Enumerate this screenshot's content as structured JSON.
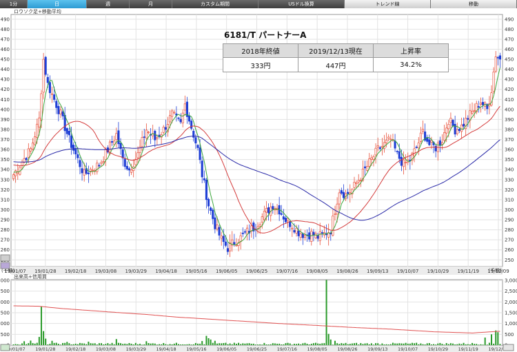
{
  "tabs": [
    {
      "label": "1分"
    },
    {
      "label": "日"
    },
    {
      "label": "週"
    },
    {
      "label": "月"
    },
    {
      "label": "カスタム期間"
    },
    {
      "label": "USドル換算"
    },
    {
      "label": "トレンド線"
    },
    {
      "label": "移動"
    }
  ],
  "price_panel_label": "ロウソク足+移動平均",
  "volume_panel_label": "出来高+信用買",
  "unit_label": "(千株)",
  "info": {
    "title": "6181/T パートナーA",
    "headers": [
      "2018年終値",
      "2019/12/13現在",
      "上昇率"
    ],
    "values": [
      "333円",
      "447円",
      "34.2%"
    ]
  },
  "colors": {
    "up": "#e8503a",
    "down": "#1f3fd6",
    "ma_short": "#3aa63a",
    "ma_mid": "#d43a3a",
    "ma_long": "#2a2aa8",
    "volume": "#2a9a2a",
    "margin": "#e05050"
  },
  "chart_data": [
    {
      "type": "candlestick",
      "y_ticks": [
        250,
        260,
        270,
        280,
        290,
        300,
        310,
        320,
        330,
        340,
        350,
        360,
        370,
        380,
        390,
        400,
        410,
        420,
        430,
        440,
        450,
        460,
        470,
        480,
        490
      ],
      "ylim": [
        244,
        494
      ],
      "x_tick_labels": [
        "19/01/07",
        "19/01/28",
        "19/02/18",
        "19/03/08",
        "19/03/29",
        "19/04/18",
        "19/05/16",
        "19/06/05",
        "19/06/25",
        "19/07/16",
        "19/08/05",
        "19/08/26",
        "19/09/13",
        "19/10/07",
        "19/10/29",
        "19/11/19",
        "19/12/09"
      ],
      "close_key_points": [
        [
          0,
          335
        ],
        [
          3,
          345
        ],
        [
          8,
          360
        ],
        [
          12,
          390
        ],
        [
          14,
          450
        ],
        [
          16,
          425
        ],
        [
          19,
          410
        ],
        [
          22,
          395
        ],
        [
          26,
          370
        ],
        [
          30,
          350
        ],
        [
          33,
          335
        ],
        [
          36,
          340
        ],
        [
          40,
          345
        ],
        [
          44,
          360
        ],
        [
          48,
          375
        ],
        [
          51,
          350
        ],
        [
          54,
          340
        ],
        [
          58,
          355
        ],
        [
          62,
          380
        ],
        [
          66,
          370
        ],
        [
          70,
          380
        ],
        [
          74,
          395
        ],
        [
          78,
          385
        ],
        [
          80,
          405
        ],
        [
          82,
          390
        ],
        [
          86,
          360
        ],
        [
          88,
          335
        ],
        [
          91,
          305
        ],
        [
          94,
          285
        ],
        [
          97,
          270
        ],
        [
          100,
          262
        ],
        [
          103,
          268
        ],
        [
          106,
          272
        ],
        [
          109,
          278
        ],
        [
          112,
          282
        ],
        [
          115,
          290
        ],
        [
          118,
          298
        ],
        [
          121,
          305
        ],
        [
          124,
          300
        ],
        [
          127,
          290
        ],
        [
          130,
          285
        ],
        [
          133,
          278
        ],
        [
          136,
          275
        ],
        [
          139,
          276
        ],
        [
          142,
          273
        ],
        [
          145,
          276
        ],
        [
          148,
          280
        ],
        [
          150,
          300
        ],
        [
          152,
          320
        ],
        [
          155,
          315
        ],
        [
          158,
          320
        ],
        [
          161,
          330
        ],
        [
          164,
          340
        ],
        [
          167,
          350
        ],
        [
          170,
          360
        ],
        [
          173,
          365
        ],
        [
          176,
          370
        ],
        [
          179,
          355
        ],
        [
          182,
          345
        ],
        [
          185,
          350
        ],
        [
          188,
          362
        ],
        [
          191,
          378
        ],
        [
          194,
          365
        ],
        [
          197,
          362
        ],
        [
          200,
          370
        ],
        [
          203,
          390
        ],
        [
          206,
          380
        ],
        [
          209,
          383
        ],
        [
          212,
          392
        ],
        [
          215,
          400
        ],
        [
          218,
          408
        ],
        [
          221,
          400
        ],
        [
          223,
          420
        ],
        [
          225,
          455
        ],
        [
          227,
          450
        ]
      ],
      "series": [
        {
          "name": "ma_short",
          "color": "#3aa63a"
        },
        {
          "name": "ma_mid",
          "color": "#d43a3a"
        },
        {
          "name": "ma_long",
          "color": "#2a2aa8"
        }
      ]
    },
    {
      "type": "bar",
      "y_ticks": [
        0,
        500,
        1000,
        1500,
        2000,
        2500,
        3000
      ],
      "ylim": [
        0,
        3000
      ],
      "margin_line_key_points": [
        [
          0,
          1820
        ],
        [
          12,
          1800
        ],
        [
          22,
          1700
        ],
        [
          36,
          1600
        ],
        [
          50,
          1500
        ],
        [
          62,
          1420
        ],
        [
          76,
          1300
        ],
        [
          92,
          1200
        ],
        [
          108,
          1100
        ],
        [
          124,
          1000
        ],
        [
          140,
          920
        ],
        [
          158,
          820
        ],
        [
          176,
          740
        ],
        [
          196,
          620
        ],
        [
          214,
          560
        ],
        [
          226,
          640
        ]
      ],
      "volume_spikes": [
        [
          5,
          180
        ],
        [
          8,
          210
        ],
        [
          12,
          380
        ],
        [
          13,
          1780
        ],
        [
          14,
          650
        ],
        [
          15,
          300
        ],
        [
          18,
          200
        ],
        [
          25,
          150
        ],
        [
          35,
          160
        ],
        [
          48,
          280
        ],
        [
          62,
          180
        ],
        [
          88,
          190
        ],
        [
          90,
          430
        ],
        [
          91,
          320
        ],
        [
          92,
          260
        ],
        [
          94,
          200
        ],
        [
          146,
          3020
        ],
        [
          147,
          520
        ],
        [
          148,
          260
        ],
        [
          150,
          200
        ],
        [
          220,
          350
        ],
        [
          223,
          500
        ],
        [
          225,
          680
        ],
        [
          226,
          600
        ]
      ]
    }
  ]
}
